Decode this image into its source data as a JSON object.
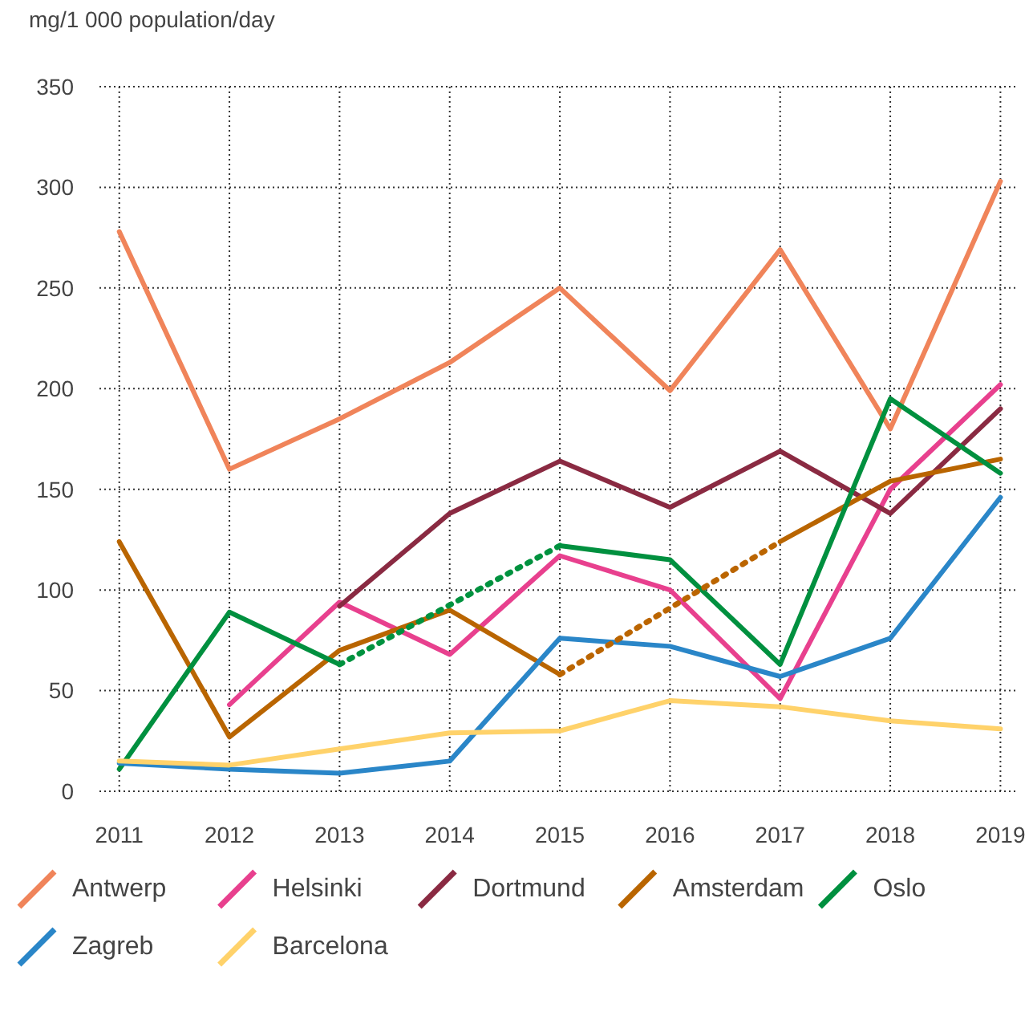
{
  "chart_data": {
    "type": "line",
    "ylabel": "mg/1 000 population/day",
    "x": [
      2011,
      2012,
      2013,
      2014,
      2015,
      2016,
      2017,
      2018,
      2019
    ],
    "xlim": [
      2010.82,
      2019.15
    ],
    "xticks": [
      2011,
      2012,
      2013,
      2014,
      2015,
      2016,
      2017,
      2018,
      2019
    ],
    "ylim": [
      0,
      350
    ],
    "yticks": [
      0,
      50,
      100,
      150,
      200,
      250,
      300,
      350
    ],
    "grid": true,
    "legend": "bottom",
    "line_style": "solid",
    "marker": "none",
    "series": [
      {
        "name": "Antwerp",
        "color": "#f0845a",
        "values": [
          278,
          160,
          185,
          213,
          250,
          199,
          269,
          180,
          303
        ]
      },
      {
        "name": "Helsinki",
        "color": "#e8408e",
        "values": [
          null,
          43,
          94,
          68,
          117,
          100,
          46,
          150,
          202
        ]
      },
      {
        "name": "Dortmund",
        "color": "#8a2a42",
        "values": [
          null,
          null,
          92,
          138,
          164,
          141,
          169,
          138,
          190
        ]
      },
      {
        "name": "Amsterdam",
        "color": "#b96500",
        "values": [
          124,
          27,
          70,
          90,
          58,
          null,
          124,
          154,
          165
        ]
      },
      {
        "name": "Oslo",
        "color": "#00903f",
        "values": [
          11,
          89,
          63,
          null,
          122,
          115,
          63,
          195,
          158
        ]
      },
      {
        "name": "Zagreb",
        "color": "#2a86c8",
        "values": [
          14,
          11,
          9,
          15,
          76,
          72,
          57,
          76,
          146
        ]
      },
      {
        "name": "Barcelona",
        "color": "#ffd26a",
        "values": [
          15,
          13,
          21,
          29,
          30,
          45,
          42,
          35,
          31
        ]
      },
      {
        "type": "line",
        "color": "#00923f",
        "x": [
          2013,
          2015
        ],
        "values": [
          63,
          122
        ],
        "line_style": "dotted"
      },
      {
        "type": "line",
        "color": "#bb6500",
        "x": [
          2015,
          2017
        ],
        "values": [
          58,
          124
        ],
        "line_style": "dotted"
      }
    ]
  }
}
